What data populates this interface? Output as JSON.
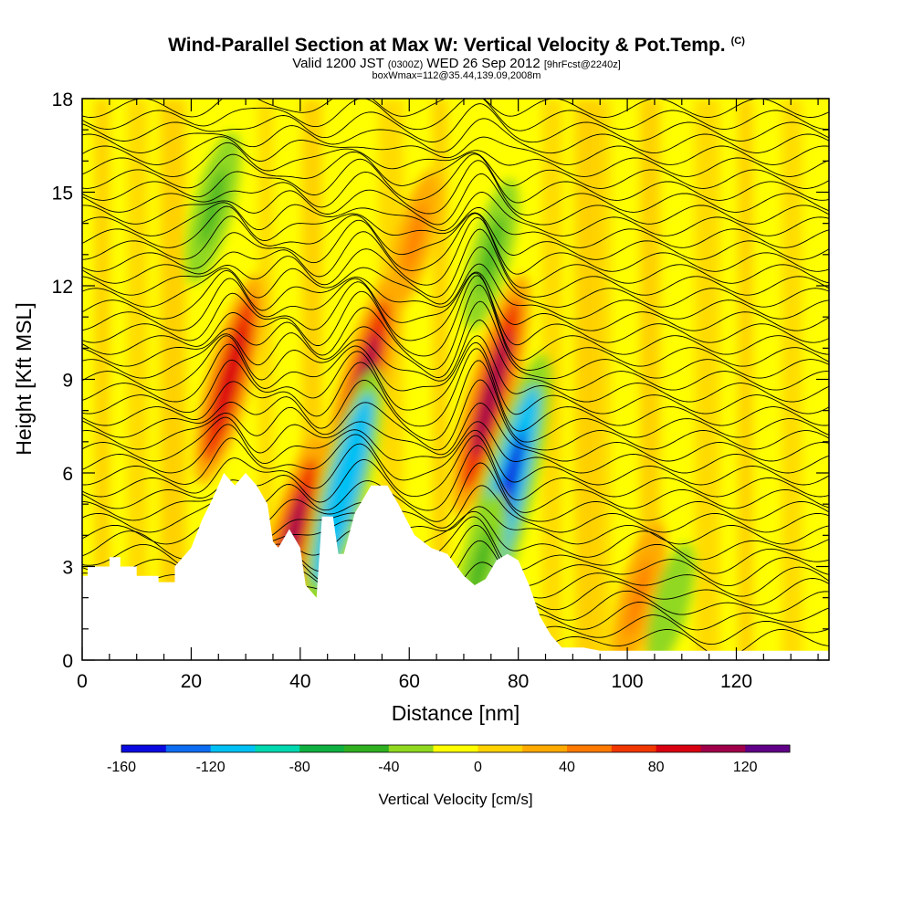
{
  "header": {
    "title": "Wind-Parallel Section at Max W: Vertical Velocity & Pot.Temp.",
    "copyright": "(C)",
    "valid_prefix": "Valid 1200 JST",
    "valid_utc": "(0300Z)",
    "valid_date": "WED 26 Sep 2012",
    "forecast": "[9hrFcst@2240z]",
    "box_info": "boxWmax=112@35.44,139.09,2008m"
  },
  "chart_data": {
    "type": "heatmap",
    "xlabel": "Distance [nm]",
    "ylabel": "Height [Kft MSL]",
    "xlim": [
      0,
      137
    ],
    "ylim": [
      0,
      18
    ],
    "xticks": [
      0,
      20,
      40,
      60,
      80,
      100,
      120
    ],
    "yticks": [
      0,
      3,
      6,
      9,
      12,
      15,
      18
    ],
    "colorbar": {
      "title": "Vertical Velocity [cm/s]",
      "range": [
        -160,
        140
      ],
      "step": 20,
      "labels": [
        -160,
        -120,
        -80,
        -40,
        0,
        40,
        80,
        120
      ],
      "colors": [
        "#0a0ae0",
        "#0c6cf2",
        "#00c0f4",
        "#00d8b0",
        "#10b040",
        "#30b020",
        "#90d820",
        "#ffff00",
        "#ffd200",
        "#ffaa00",
        "#ff7a00",
        "#f03800",
        "#d80010",
        "#a0004a",
        "#600088"
      ]
    },
    "terrain_profile": [
      [
        0,
        2.7
      ],
      [
        1,
        2.7
      ],
      [
        1,
        3.0
      ],
      [
        5,
        3.0
      ],
      [
        5,
        3.3
      ],
      [
        7,
        3.3
      ],
      [
        7,
        3.0
      ],
      [
        10,
        3.0
      ],
      [
        10,
        2.7
      ],
      [
        14,
        2.7
      ],
      [
        14,
        2.5
      ],
      [
        17,
        2.5
      ],
      [
        17,
        3.0
      ],
      [
        20,
        3.6
      ],
      [
        22,
        4.5
      ],
      [
        24,
        5.2
      ],
      [
        26,
        6.0
      ],
      [
        28,
        5.6
      ],
      [
        30,
        6.0
      ],
      [
        32,
        5.6
      ],
      [
        34,
        5.0
      ],
      [
        35,
        3.8
      ],
      [
        36,
        3.6
      ],
      [
        38,
        4.2
      ],
      [
        40,
        3.6
      ],
      [
        41,
        2.4
      ],
      [
        43,
        2.0
      ],
      [
        44,
        4.6
      ],
      [
        46,
        4.6
      ],
      [
        47,
        3.4
      ],
      [
        48,
        3.4
      ],
      [
        50,
        4.7
      ],
      [
        52,
        5.3
      ],
      [
        53,
        5.6
      ],
      [
        56,
        5.6
      ],
      [
        58,
        5.0
      ],
      [
        61,
        4.0
      ],
      [
        64,
        3.6
      ],
      [
        67,
        3.4
      ],
      [
        70,
        2.7
      ],
      [
        72,
        2.4
      ],
      [
        74,
        2.6
      ],
      [
        76,
        3.2
      ],
      [
        78,
        3.4
      ],
      [
        80,
        3.2
      ],
      [
        82,
        2.4
      ],
      [
        84,
        1.4
      ],
      [
        86,
        0.8
      ],
      [
        88,
        0.4
      ],
      [
        92,
        0.4
      ],
      [
        95,
        0.3
      ],
      [
        112,
        0.3
      ],
      [
        137,
        0.3
      ]
    ],
    "w_features": [
      {
        "x": 27,
        "z": 9.0,
        "w": 90
      },
      {
        "x": 38,
        "z": 3.6,
        "w": 100
      },
      {
        "x": 51,
        "z": 8.5,
        "w": 110
      },
      {
        "x": 48,
        "z": 5.5,
        "w": -110
      },
      {
        "x": 61,
        "z": 13.5,
        "w": 40
      },
      {
        "x": 75,
        "z": 8.5,
        "w": 112
      },
      {
        "x": 77,
        "z": 4.8,
        "w": -160
      },
      {
        "x": 75,
        "z": 13.0,
        "w": -50
      },
      {
        "x": 24,
        "z": 14.5,
        "w": -50
      },
      {
        "x": 73,
        "z": 3.0,
        "w": -50
      },
      {
        "x": 102,
        "z": 2.0,
        "w": 50
      },
      {
        "x": 108,
        "z": 1.8,
        "w": -30
      }
    ]
  }
}
